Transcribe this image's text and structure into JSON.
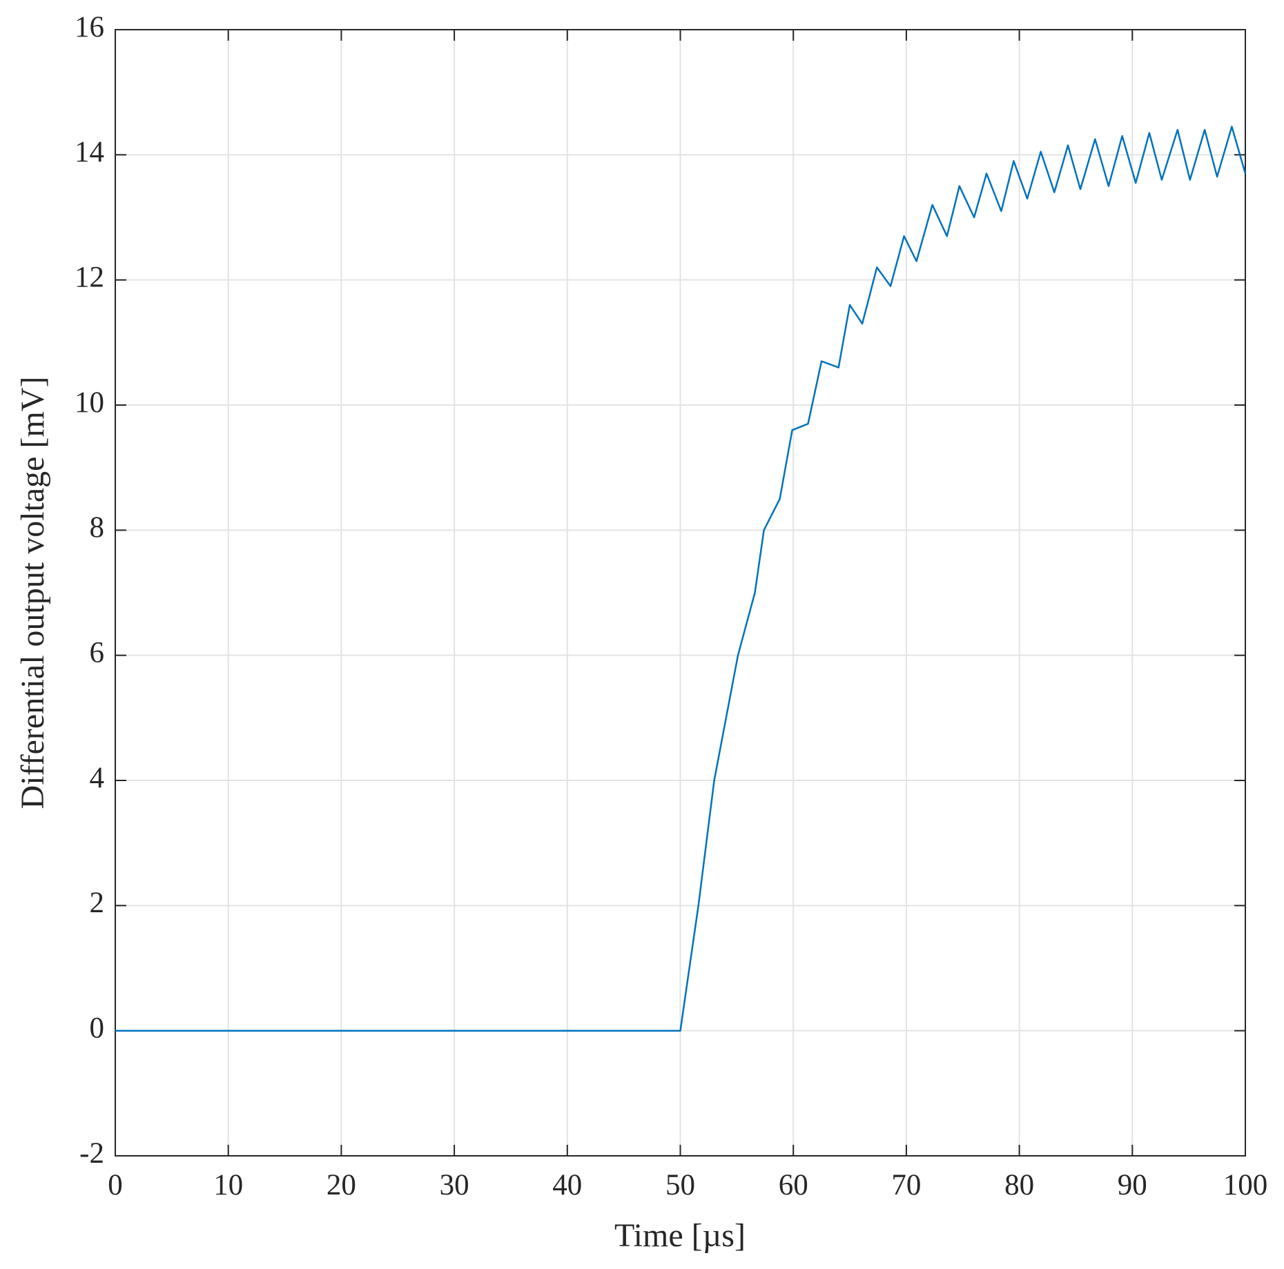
{
  "chart_data": {
    "type": "line",
    "xlabel": "Time [µs]",
    "ylabel": "Differential output voltage [mV]",
    "x": [
      0,
      50,
      51.6,
      53.0,
      55.1,
      56.6,
      57.4,
      58.8,
      59.9,
      61.3,
      62.5,
      64.0,
      65.0,
      66.1,
      67.4,
      68.6,
      69.8,
      70.9,
      72.3,
      73.6,
      74.7,
      76.0,
      77.1,
      78.4,
      79.5,
      80.7,
      81.9,
      83.1,
      84.3,
      85.4,
      86.7,
      87.9,
      89.1,
      90.3,
      91.5,
      92.6,
      94.0,
      95.1,
      96.4,
      97.5,
      98.8,
      100
    ],
    "series": [
      {
        "color": "#0072bd",
        "values": [
          0,
          0,
          2,
          4,
          6,
          7,
          8,
          8.5,
          9.6,
          9.7,
          10.7,
          10.6,
          11.6,
          11.3,
          12.2,
          11.9,
          12.7,
          12.3,
          13.2,
          12.7,
          13.5,
          13.0,
          13.7,
          13.1,
          13.9,
          13.3,
          14.05,
          13.4,
          14.15,
          13.45,
          14.25,
          13.5,
          14.3,
          13.55,
          14.35,
          13.6,
          14.4,
          13.6,
          14.4,
          13.65,
          14.45,
          13.7
        ]
      }
    ],
    "xlim": [
      0,
      100
    ],
    "xticks": [
      0,
      10,
      20,
      30,
      40,
      50,
      60,
      70,
      80,
      90,
      100
    ],
    "ylim": [
      -2,
      16
    ],
    "yticks": [
      -2,
      0,
      2,
      4,
      6,
      8,
      10,
      12,
      14,
      16
    ],
    "grid": true
  }
}
